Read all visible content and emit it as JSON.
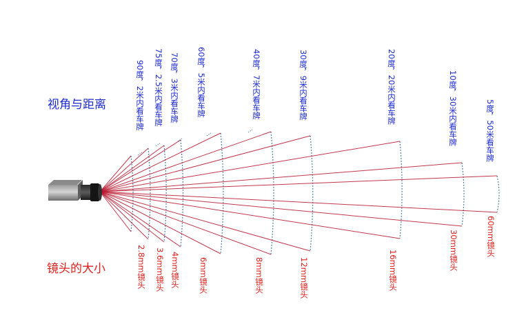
{
  "labels": {
    "view_heading": "视角与距离",
    "lens_heading": "镜头的大小"
  },
  "colors": {
    "view_text": "#1d2bd0",
    "lens_text": "#e0201c",
    "ray": "#b8142c",
    "arc": "#4e7fa0"
  },
  "icons": {
    "camera": "camera-icon"
  },
  "zones": [
    {
      "view": "90度，2米内看车牌",
      "lens": "2.8mm镜头"
    },
    {
      "view": "75度，2.5米内看车牌",
      "lens": "3.6mm镜头"
    },
    {
      "view": "70度，3米内看车牌",
      "lens": "4mm镜头"
    },
    {
      "view": "60度，5米内看车牌",
      "lens": "6mm镜头"
    },
    {
      "view": "40度，7米内看车牌",
      "lens": "8mm镜头"
    },
    {
      "view": "30度，9米内看车牌",
      "lens": "12mm镜头"
    },
    {
      "view": "20度，20米内看车牌",
      "lens": "16mm镜头"
    },
    {
      "view": "10度，30米内看车牌",
      "lens": "30mm镜头"
    },
    {
      "view": "5度，50米看车牌",
      "lens": "60mm镜头"
    }
  ]
}
